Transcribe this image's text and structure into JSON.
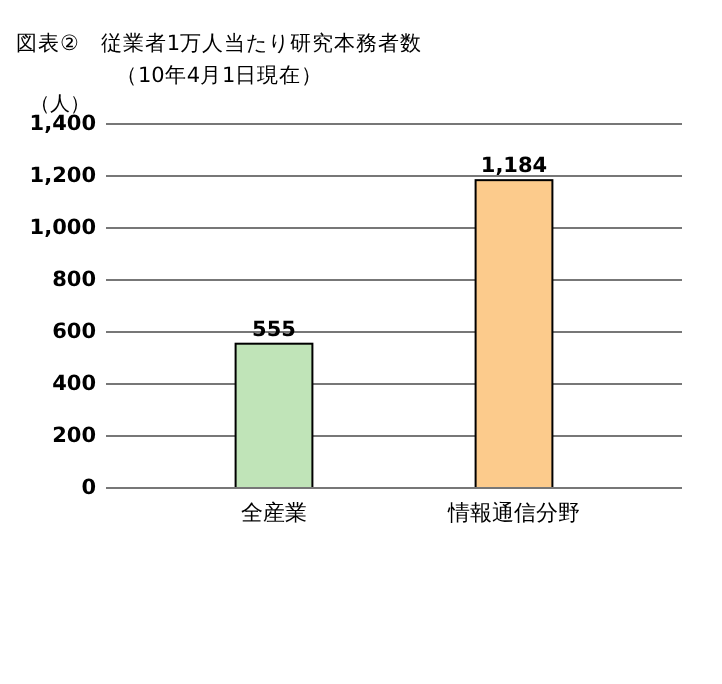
{
  "chart_data": {
    "type": "bar",
    "title": "図表②　従業者1万人当たり研究本務者数",
    "subtitle": "（10年4月1日現在）",
    "ylabel": "（人）",
    "categories": [
      "全産業",
      "情報通信分野"
    ],
    "values": [
      555,
      1184
    ],
    "colors": [
      "#c0e4b8",
      "#fccb8c"
    ],
    "ylim": [
      0,
      1400
    ],
    "yticks": [
      {
        "value": 0,
        "label": "0"
      },
      {
        "value": 200,
        "label": "200"
      },
      {
        "value": 400,
        "label": "400"
      },
      {
        "value": 600,
        "label": "600"
      },
      {
        "value": 800,
        "label": "800"
      },
      {
        "value": 1000,
        "label": "1,000"
      },
      {
        "value": 1200,
        "label": "1,200"
      },
      {
        "value": 1400,
        "label": "1,400"
      }
    ],
    "value_labels": [
      "555",
      "1,184"
    ],
    "grid": "y"
  }
}
